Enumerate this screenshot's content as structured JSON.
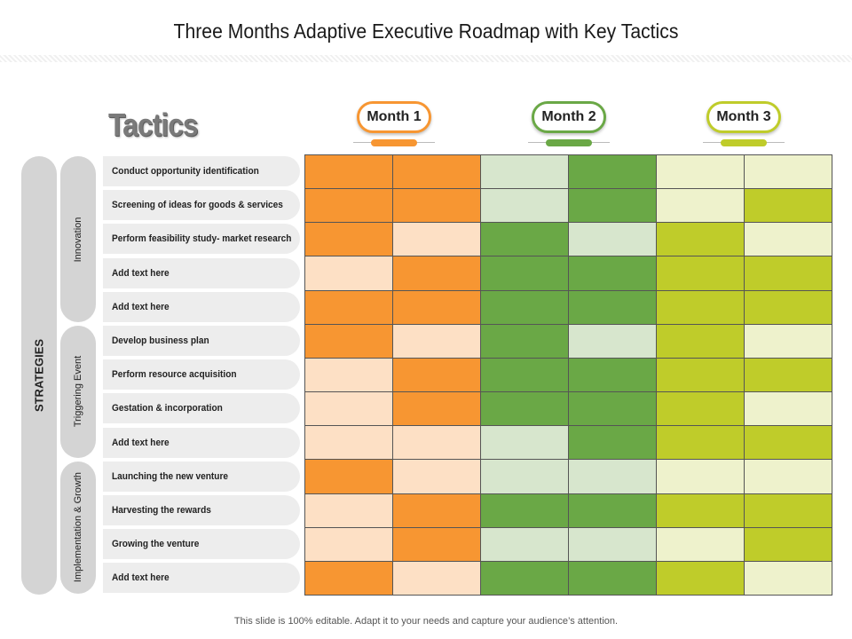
{
  "title": "Three Months Adaptive Executive Roadmap with Key Tactics",
  "tactics_heading": "Tactics",
  "months": [
    {
      "label": "Month 1",
      "color": "#f79632"
    },
    {
      "label": "Month 2",
      "color": "#6aa846"
    },
    {
      "label": "Month 3",
      "color": "#bfcc2a"
    }
  ],
  "strategies_label": "STRATEGIES",
  "groups": [
    {
      "label": "Innovation",
      "rows": 5
    },
    {
      "label": "Triggering Event",
      "rows": 4
    },
    {
      "label": "Implementation & Growth",
      "rows": 4
    }
  ],
  "tactics": [
    "Conduct opportunity identification",
    "Screening of ideas for goods & services",
    "Perform feasibility study- market research",
    "Add text here",
    "Add text here",
    "Develop business plan",
    "Perform resource acquisition",
    "Gestation & incorporation",
    "Add text here",
    "Launching the new venture",
    "Harvesting the rewards",
    "Growing the venture",
    "Add text here"
  ],
  "palette": {
    "1": "#f79632",
    "0": "#fde0c5",
    "3": "#6aa846",
    "2": "#d7e6cd",
    "5": "#bfcc2a",
    "4": "#eef2cc"
  },
  "schedule": [
    [
      1,
      1,
      2,
      3,
      4,
      4
    ],
    [
      1,
      1,
      2,
      3,
      4,
      5
    ],
    [
      1,
      0,
      3,
      2,
      5,
      4
    ],
    [
      0,
      1,
      3,
      3,
      5,
      5
    ],
    [
      1,
      1,
      3,
      3,
      5,
      5
    ],
    [
      1,
      0,
      3,
      2,
      5,
      4
    ],
    [
      0,
      1,
      3,
      3,
      5,
      5
    ],
    [
      0,
      1,
      3,
      3,
      5,
      4
    ],
    [
      0,
      0,
      2,
      3,
      5,
      5
    ],
    [
      1,
      0,
      2,
      2,
      4,
      4
    ],
    [
      0,
      1,
      3,
      3,
      5,
      5
    ],
    [
      0,
      1,
      2,
      2,
      4,
      5
    ],
    [
      1,
      0,
      3,
      3,
      5,
      4
    ]
  ],
  "footer": "This slide is 100% editable.  Adapt it to your needs and capture your audience’s attention."
}
